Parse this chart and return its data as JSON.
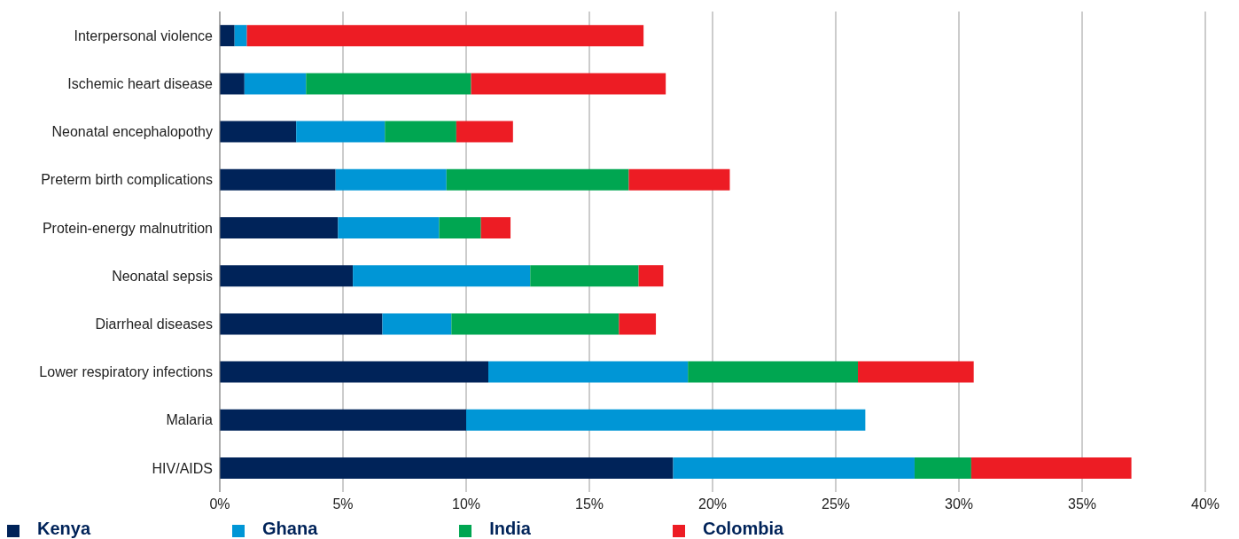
{
  "chart_data": {
    "type": "bar",
    "orientation": "horizontal",
    "stacked": true,
    "categories": [
      "Interpersonal violence",
      "Ischemic heart disease",
      "Neonatal encephalopothy",
      "Preterm birth complications",
      "Protein-energy malnutrition",
      "Neonatal sepsis",
      "Diarrheal diseases",
      "Lower respiratory infections",
      "Malaria",
      "HIV/AIDS"
    ],
    "series": [
      {
        "name": "Kenya",
        "color": "#002359",
        "values": [
          0.6,
          1.0,
          3.1,
          4.7,
          4.8,
          5.4,
          6.6,
          10.9,
          10.0,
          18.4
        ]
      },
      {
        "name": "Ghana",
        "color": "#0096d6",
        "values": [
          0.5,
          2.5,
          3.6,
          4.5,
          4.1,
          7.2,
          2.8,
          8.1,
          16.2,
          9.8
        ]
      },
      {
        "name": "India",
        "color": "#00a651",
        "values": [
          0,
          6.7,
          2.9,
          7.4,
          1.7,
          4.4,
          6.8,
          6.9,
          0,
          2.3
        ]
      },
      {
        "name": "Colombia",
        "color": "#ed1c24",
        "values": [
          16.1,
          7.9,
          2.3,
          4.1,
          1.2,
          1.0,
          1.5,
          4.7,
          0,
          6.5
        ]
      }
    ],
    "xlim": [
      0,
      40
    ],
    "xticks": [
      {
        "value": 0,
        "label": "0%"
      },
      {
        "value": 5,
        "label": "5%"
      },
      {
        "value": 10,
        "label": "10%"
      },
      {
        "value": 15,
        "label": "15%"
      },
      {
        "value": 20,
        "label": "20%"
      },
      {
        "value": 25,
        "label": "25%"
      },
      {
        "value": 30,
        "label": "30%"
      },
      {
        "value": 35,
        "label": "35%"
      },
      {
        "value": 40,
        "label": "40%"
      }
    ],
    "grid": "x",
    "legend": "bottom left"
  }
}
